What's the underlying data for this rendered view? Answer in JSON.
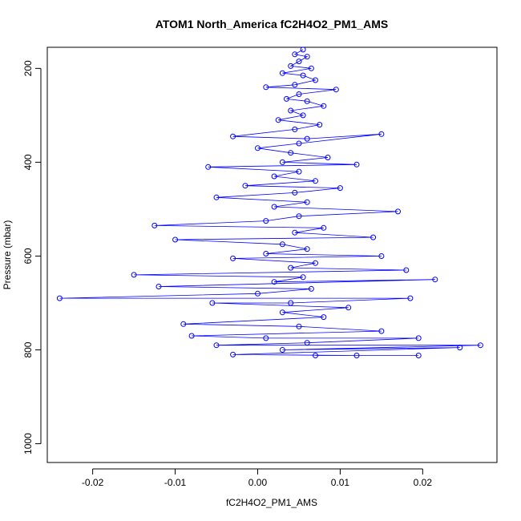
{
  "chart_data": {
    "type": "scatter",
    "title": "ATOM1 North_America fC2H4O2_PM1_AMS",
    "xlabel": "fC2H4O2_PM1_AMS",
    "ylabel": "Pressure (mbar)",
    "xlim": [
      -0.0255,
      0.029
    ],
    "ylim": [
      1040,
      155
    ],
    "y_reversed": true,
    "x_ticks": [
      -0.02,
      -0.01,
      0.0,
      0.01,
      0.02
    ],
    "x_tick_labels": [
      "-0.02",
      "-0.01",
      "0.00",
      "0.01",
      "0.02"
    ],
    "y_ticks": [
      200,
      400,
      600,
      800,
      1000
    ],
    "y_tick_labels": [
      "200",
      "400",
      "600",
      "800",
      "1000"
    ],
    "grid": false,
    "legend": "none",
    "marker": "open-circle",
    "connected_lines": true,
    "colors": {
      "series": "#0000ff",
      "surface_series": "#000000",
      "axis": "#000000"
    },
    "series": [
      {
        "values": [
          [
            0.0055,
            160
          ],
          [
            0.0045,
            170
          ],
          [
            0.006,
            175
          ],
          [
            0.005,
            185
          ],
          [
            0.004,
            195
          ],
          [
            0.0065,
            200
          ],
          [
            0.003,
            210
          ],
          [
            0.0055,
            215
          ],
          [
            0.007,
            225
          ],
          [
            0.0045,
            235
          ],
          [
            0.001,
            240
          ],
          [
            0.0095,
            245
          ],
          [
            0.005,
            255
          ],
          [
            0.0035,
            265
          ],
          [
            0.006,
            270
          ],
          [
            0.008,
            280
          ],
          [
            0.004,
            290
          ],
          [
            0.0055,
            300
          ],
          [
            0.0025,
            310
          ],
          [
            0.0075,
            320
          ],
          [
            0.0045,
            330
          ],
          [
            -0.003,
            345
          ],
          [
            0.006,
            350
          ],
          [
            0.015,
            340
          ],
          [
            0.005,
            360
          ],
          [
            0.0,
            370
          ],
          [
            0.004,
            380
          ],
          [
            0.0085,
            390
          ],
          [
            0.003,
            400
          ],
          [
            0.012,
            405
          ],
          [
            -0.006,
            410
          ],
          [
            0.005,
            420
          ],
          [
            0.002,
            430
          ],
          [
            0.007,
            440
          ],
          [
            -0.0015,
            450
          ],
          [
            0.01,
            455
          ],
          [
            0.0045,
            465
          ],
          [
            -0.005,
            475
          ],
          [
            0.006,
            485
          ],
          [
            0.002,
            495
          ],
          [
            0.017,
            505
          ],
          [
            0.005,
            515
          ],
          [
            0.001,
            525
          ],
          [
            -0.0125,
            535
          ],
          [
            0.008,
            540
          ],
          [
            0.0045,
            550
          ],
          [
            0.014,
            560
          ],
          [
            -0.01,
            565
          ],
          [
            0.003,
            575
          ],
          [
            0.006,
            585
          ],
          [
            0.001,
            595
          ],
          [
            0.015,
            600
          ],
          [
            -0.003,
            605
          ],
          [
            0.007,
            615
          ],
          [
            0.004,
            625
          ],
          [
            0.018,
            630
          ],
          [
            -0.015,
            640
          ],
          [
            0.0055,
            645
          ],
          [
            0.002,
            655
          ],
          [
            0.0215,
            650
          ],
          [
            -0.012,
            665
          ],
          [
            0.0065,
            670
          ],
          [
            0.0,
            680
          ],
          [
            -0.024,
            690
          ],
          [
            0.0185,
            690
          ],
          [
            0.004,
            700
          ],
          [
            -0.0055,
            700
          ],
          [
            0.011,
            710
          ],
          [
            0.003,
            720
          ],
          [
            0.008,
            730
          ],
          [
            -0.009,
            745
          ],
          [
            0.005,
            750
          ],
          [
            0.015,
            760
          ],
          [
            -0.008,
            770
          ],
          [
            0.001,
            775
          ],
          [
            0.0195,
            775
          ],
          [
            0.006,
            785
          ],
          [
            -0.005,
            790
          ],
          [
            0.027,
            790
          ],
          [
            0.003,
            800
          ],
          [
            0.0245,
            795
          ],
          [
            -0.003,
            810
          ],
          [
            0.012,
            812
          ],
          [
            0.0195,
            812
          ],
          [
            0.007,
            812
          ]
        ]
      }
    ]
  }
}
